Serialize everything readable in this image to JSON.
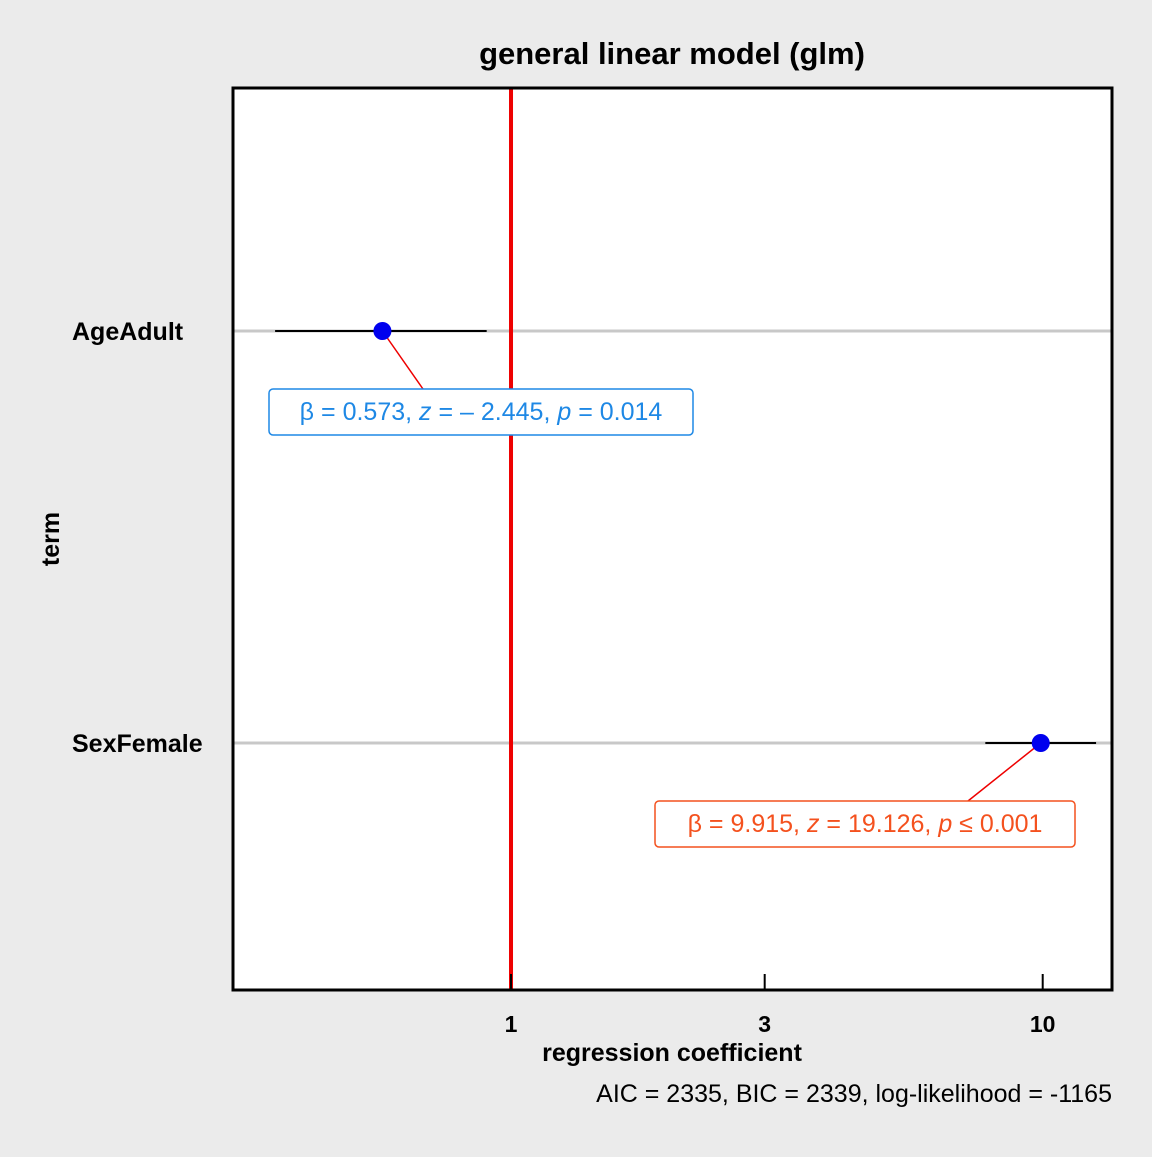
{
  "chart_data": {
    "type": "scatter",
    "title": "general linear model (glm)",
    "xlabel": "regression coefficient",
    "ylabel": "term",
    "caption": "AIC = 2335, BIC = 2339, log-likelihood = -1165",
    "x_scale": "log",
    "xlim": [
      0.3,
      13.5
    ],
    "x_ticks": [
      1,
      3,
      10
    ],
    "reference_line": {
      "x": 1,
      "color": "#ee0000"
    },
    "grid": "horizontal",
    "colors": {
      "point": "#0000ee",
      "reference": "#ee0000",
      "label_AgeAdult": "#1e88e5",
      "label_SexFemale": "#f4511e",
      "gridline": "#c8c8c8",
      "background": "#ebebeb"
    },
    "terms": [
      {
        "term": "AgeAdult",
        "estimate": 0.573,
        "ci_low": 0.36,
        "ci_high": 0.9,
        "label": {
          "beta": "0.573",
          "stat_name": "z",
          "stat_op": "=",
          "stat": "– 2.445",
          "p_op": "=",
          "p": "0.014"
        }
      },
      {
        "term": "SexFemale",
        "estimate": 9.915,
        "ci_low": 7.8,
        "ci_high": 12.6,
        "label": {
          "beta": "9.915",
          "stat_name": "z",
          "stat_op": "=",
          "stat": "19.126",
          "p_op": "≤",
          "p": "0.001"
        }
      }
    ]
  }
}
